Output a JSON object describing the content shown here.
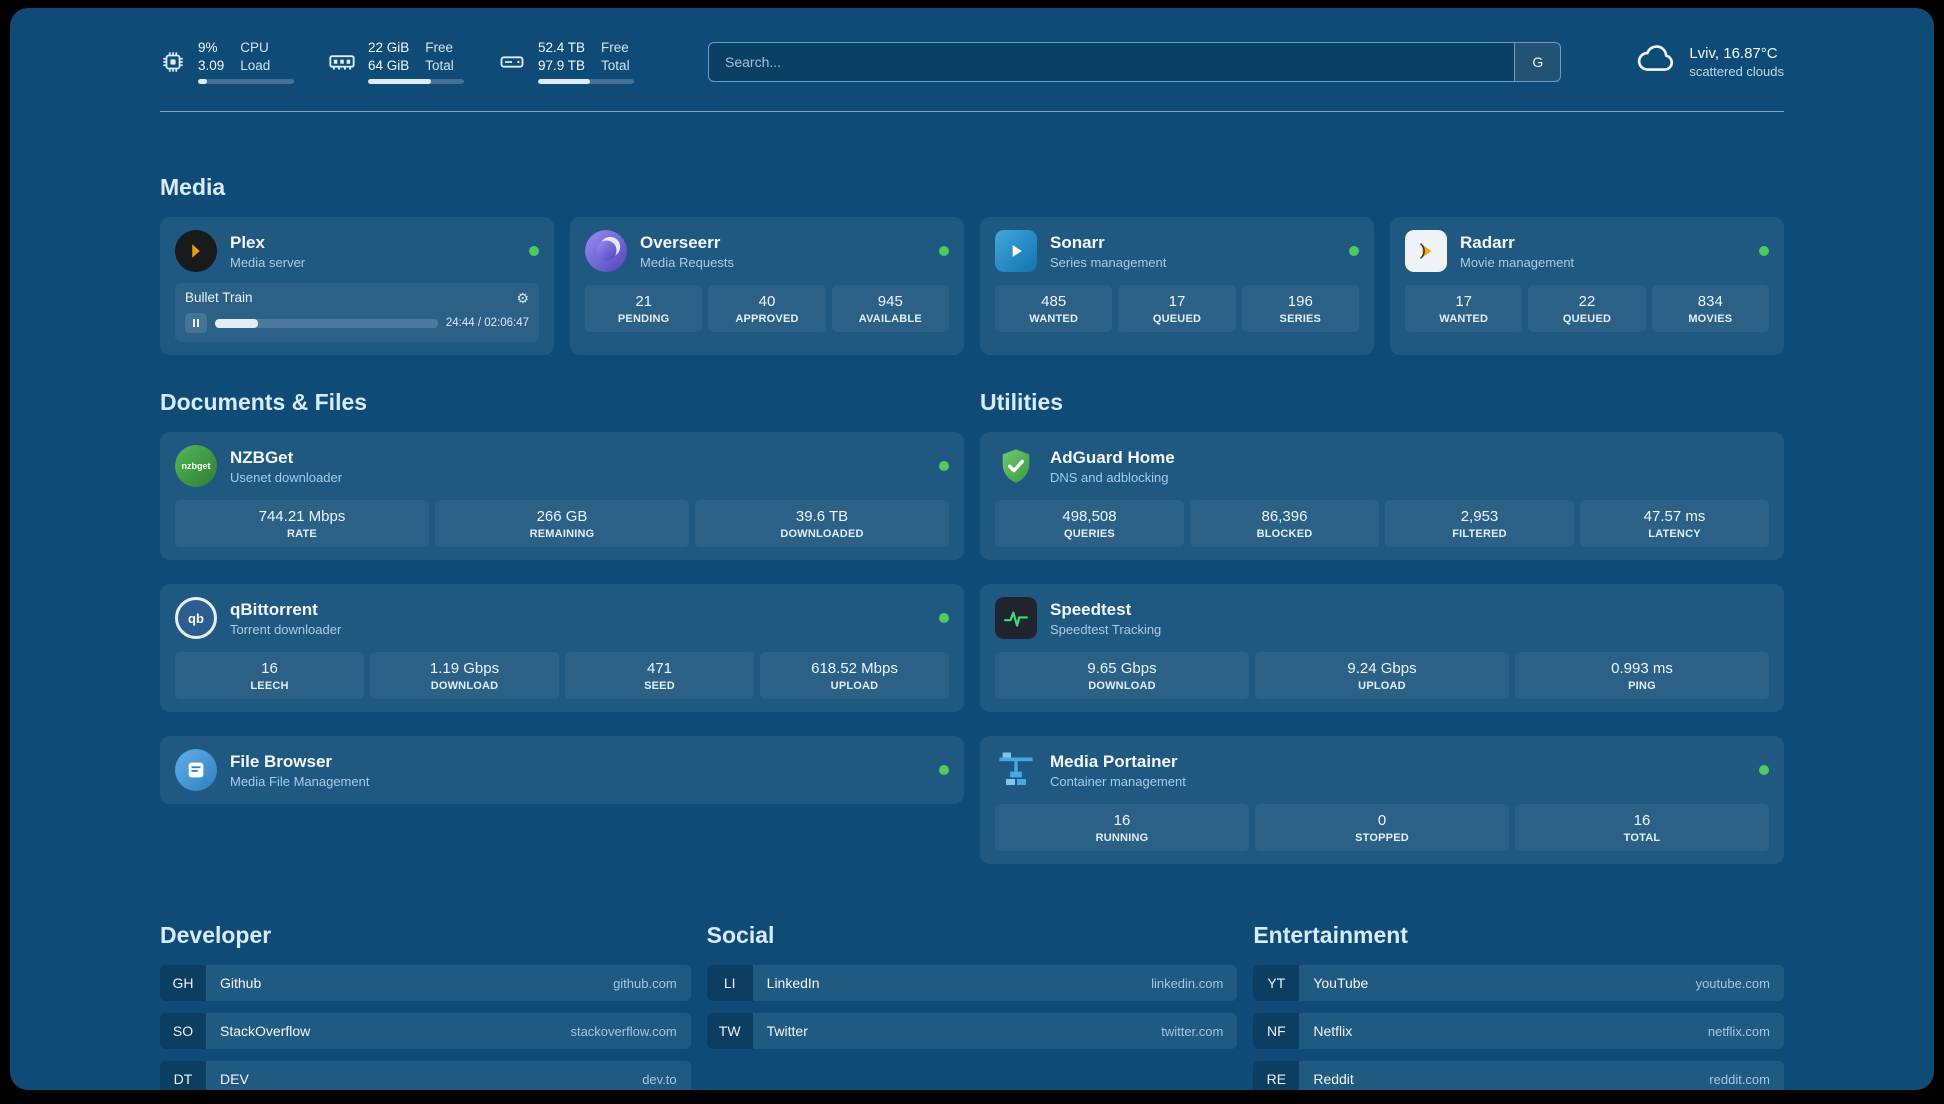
{
  "topbar": {
    "cpu": {
      "values": [
        "9%",
        "3.09"
      ],
      "labels": [
        "CPU",
        "Load"
      ],
      "progress": 9
    },
    "ram": {
      "values": [
        "22 GiB",
        "64 GiB"
      ],
      "labels": [
        "Free",
        "Total"
      ],
      "progress": 66
    },
    "disk": {
      "values": [
        "52.4 TB",
        "97.9 TB"
      ],
      "labels": [
        "Free",
        "Total"
      ],
      "progress": 54
    },
    "search": {
      "placeholder": "Search...",
      "button_label": "G"
    },
    "weather": {
      "location": "Lviv, 16.87°C",
      "condition": "scattered clouds"
    }
  },
  "sections": {
    "media": {
      "heading": "Media"
    },
    "documents": {
      "heading": "Documents & Files"
    },
    "utilities": {
      "heading": "Utilities"
    },
    "developer": {
      "heading": "Developer"
    },
    "social": {
      "heading": "Social"
    },
    "entertainment": {
      "heading": "Entertainment"
    }
  },
  "apps": {
    "plex": {
      "title": "Plex",
      "subtitle": "Media server",
      "now_playing": "Bullet Train",
      "time": "24:44 / 02:06:47",
      "progress": 19.5
    },
    "overseerr": {
      "title": "Overseerr",
      "subtitle": "Media Requests",
      "stats": [
        {
          "value": "21",
          "label": "PENDING"
        },
        {
          "value": "40",
          "label": "APPROVED"
        },
        {
          "value": "945",
          "label": "AVAILABLE"
        }
      ]
    },
    "sonarr": {
      "title": "Sonarr",
      "subtitle": "Series management",
      "stats": [
        {
          "value": "485",
          "label": "WANTED"
        },
        {
          "value": "17",
          "label": "QUEUED"
        },
        {
          "value": "196",
          "label": "SERIES"
        }
      ]
    },
    "radarr": {
      "title": "Radarr",
      "subtitle": "Movie management",
      "stats": [
        {
          "value": "17",
          "label": "WANTED"
        },
        {
          "value": "22",
          "label": "QUEUED"
        },
        {
          "value": "834",
          "label": "MOVIES"
        }
      ]
    },
    "nzbget": {
      "icon_text": "nzbget",
      "title": "NZBGet",
      "subtitle": "Usenet downloader",
      "stats": [
        {
          "value": "744.21 Mbps",
          "label": "RATE"
        },
        {
          "value": "266 GB",
          "label": "REMAINING"
        },
        {
          "value": "39.6 TB",
          "label": "DOWNLOADED"
        }
      ]
    },
    "qbittorrent": {
      "icon_text": "qb",
      "title": "qBittorrent",
      "subtitle": "Torrent downloader",
      "stats": [
        {
          "value": "16",
          "label": "LEECH"
        },
        {
          "value": "1.19 Gbps",
          "label": "DOWNLOAD"
        },
        {
          "value": "471",
          "label": "SEED"
        },
        {
          "value": "618.52 Mbps",
          "label": "UPLOAD"
        }
      ]
    },
    "filebrowser": {
      "title": "File Browser",
      "subtitle": "Media File Management"
    },
    "adguard": {
      "title": "AdGuard Home",
      "subtitle": "DNS and adblocking",
      "stats": [
        {
          "value": "498,508",
          "label": "QUERIES"
        },
        {
          "value": "86,396",
          "label": "BLOCKED"
        },
        {
          "value": "2,953",
          "label": "FILTERED"
        },
        {
          "value": "47.57 ms",
          "label": "LATENCY"
        }
      ]
    },
    "speedtest": {
      "title": "Speedtest",
      "subtitle": "Speedtest Tracking",
      "stats": [
        {
          "value": "9.65 Gbps",
          "label": "DOWNLOAD"
        },
        {
          "value": "9.24 Gbps",
          "label": "UPLOAD"
        },
        {
          "value": "0.993 ms",
          "label": "PING"
        }
      ]
    },
    "portainer": {
      "title": "Media Portainer",
      "subtitle": "Container management",
      "stats": [
        {
          "value": "16",
          "label": "RUNNING"
        },
        {
          "value": "0",
          "label": "STOPPED"
        },
        {
          "value": "16",
          "label": "TOTAL"
        }
      ]
    }
  },
  "bookmarks": {
    "developer": [
      {
        "abbr": "GH",
        "name": "Github",
        "url": "github.com"
      },
      {
        "abbr": "SO",
        "name": "StackOverflow",
        "url": "stackoverflow.com"
      },
      {
        "abbr": "DT",
        "name": "DEV",
        "url": "dev.to"
      }
    ],
    "social": [
      {
        "abbr": "LI",
        "name": "LinkedIn",
        "url": "linkedin.com"
      },
      {
        "abbr": "TW",
        "name": "Twitter",
        "url": "twitter.com"
      }
    ],
    "entertainment": [
      {
        "abbr": "YT",
        "name": "YouTube",
        "url": "youtube.com"
      },
      {
        "abbr": "NF",
        "name": "Netflix",
        "url": "netflix.com"
      },
      {
        "abbr": "RE",
        "name": "Reddit",
        "url": "reddit.com"
      }
    ]
  },
  "colors": {
    "status_online": "#4ccb5e"
  }
}
